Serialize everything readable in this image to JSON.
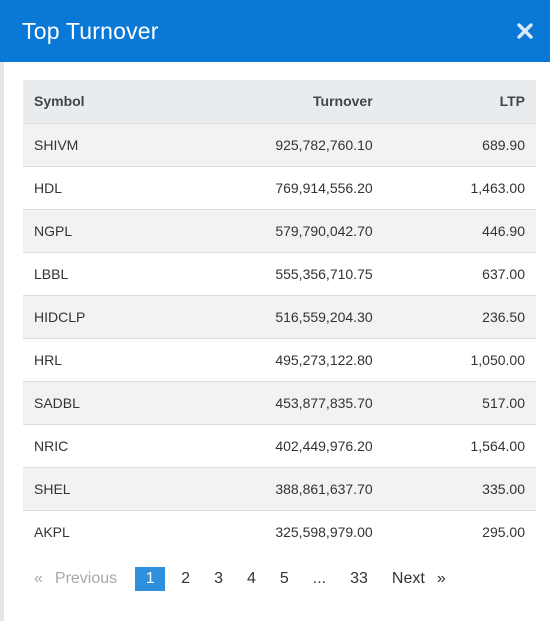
{
  "modal": {
    "title": "Top Turnover"
  },
  "table": {
    "headers": {
      "symbol": "Symbol",
      "turnover": "Turnover",
      "ltp": "LTP"
    },
    "rows": [
      {
        "symbol": "SHIVM",
        "turnover": "925,782,760.10",
        "ltp": "689.90"
      },
      {
        "symbol": "HDL",
        "turnover": "769,914,556.20",
        "ltp": "1,463.00"
      },
      {
        "symbol": "NGPL",
        "turnover": "579,790,042.70",
        "ltp": "446.90"
      },
      {
        "symbol": "LBBL",
        "turnover": "555,356,710.75",
        "ltp": "637.00"
      },
      {
        "symbol": "HIDCLP",
        "turnover": "516,559,204.30",
        "ltp": "236.50"
      },
      {
        "symbol": "HRL",
        "turnover": "495,273,122.80",
        "ltp": "1,050.00"
      },
      {
        "symbol": "SADBL",
        "turnover": "453,877,835.70",
        "ltp": "517.00"
      },
      {
        "symbol": "NRIC",
        "turnover": "402,449,976.20",
        "ltp": "1,564.00"
      },
      {
        "symbol": "SHEL",
        "turnover": "388,861,637.70",
        "ltp": "335.00"
      },
      {
        "symbol": "AKPL",
        "turnover": "325,598,979.00",
        "ltp": "295.00"
      }
    ]
  },
  "pagination": {
    "prev_arrow": "«",
    "prev_label": "Previous",
    "pages": [
      "1",
      "2",
      "3",
      "4",
      "5",
      "...",
      "33"
    ],
    "next_label": "Next",
    "next_arrow": "»"
  },
  "colors": {
    "header_bg": "#0a78d6",
    "active_page": "#2e8fdd"
  },
  "icons": {
    "close": "close-icon"
  }
}
